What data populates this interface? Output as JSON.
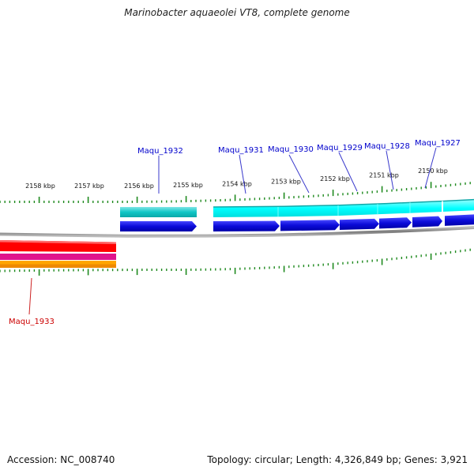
{
  "title": "Marinobacter aquaeolei VT8, complete genome",
  "footer": {
    "accession": "Accession: NC_008740",
    "summary": "Topology: circular; Length: 4,326,849 bp; Genes: 3,921"
  },
  "colors": {
    "forward_label": "#0000cc",
    "reverse_label": "#cc0000",
    "tick": "#1f8a1f",
    "backbone": "#8c8c8c",
    "cds_forward": "#0b0bd9",
    "gene_forward_teal": "#1fc8c8",
    "gene_forward_cyan": "#00ffff",
    "gene_reverse_red": "#ff0000",
    "gene_reverse_magenta": "#e0148c",
    "gene_reverse_orange": "#ffa500"
  },
  "scale_labels": [
    "2158 kbp",
    "2157 kbp",
    "2156 kbp",
    "2155 kbp",
    "2154 kbp",
    "2153 kbp",
    "2152 kbp",
    "2151 kbp",
    "2150 kbp"
  ],
  "forward_genes": [
    "Maqu_1932",
    "Maqu_1931",
    "Maqu_1930",
    "Maqu_1929",
    "Maqu_1928",
    "Maqu_1927"
  ],
  "reverse_genes": [
    "Maqu_1933"
  ]
}
